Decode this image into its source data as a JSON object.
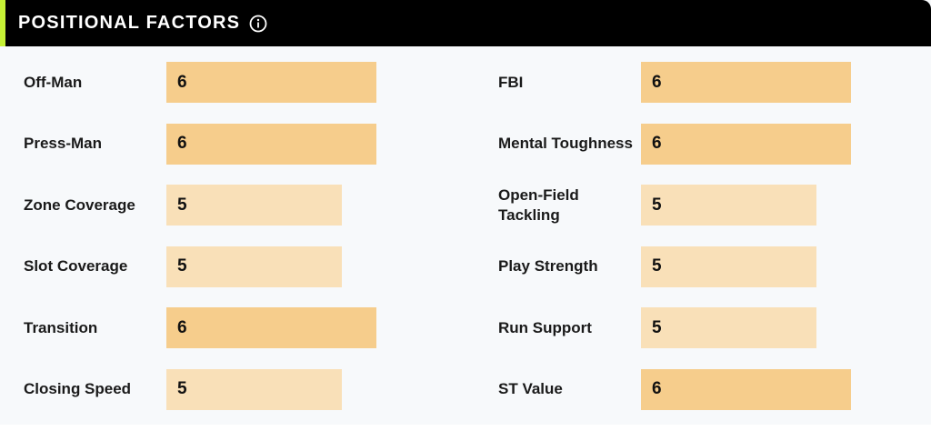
{
  "header": {
    "title": "POSITIONAL FACTORS",
    "info_icon": "info-circle-icon",
    "background": "#000000",
    "accent": "#c6f135"
  },
  "scale": {
    "max": 10,
    "colors": {
      "6": "#f6cd8c",
      "5": "#f9e0b8"
    }
  },
  "left_factors": [
    {
      "label": "Off-Man",
      "value": "6"
    },
    {
      "label": "Press-Man",
      "value": "6"
    },
    {
      "label": "Zone Coverage",
      "value": "5"
    },
    {
      "label": "Slot Coverage",
      "value": "5"
    },
    {
      "label": "Transition",
      "value": "6"
    },
    {
      "label": "Closing Speed",
      "value": "5"
    }
  ],
  "right_factors": [
    {
      "label": "FBI",
      "value": "6"
    },
    {
      "label": "Mental Toughness",
      "value": "6"
    },
    {
      "label": "Open-Field Tackling",
      "value": "5"
    },
    {
      "label": "Play Strength",
      "value": "5"
    },
    {
      "label": "Run Support",
      "value": "5"
    },
    {
      "label": "ST Value",
      "value": "6"
    }
  ]
}
